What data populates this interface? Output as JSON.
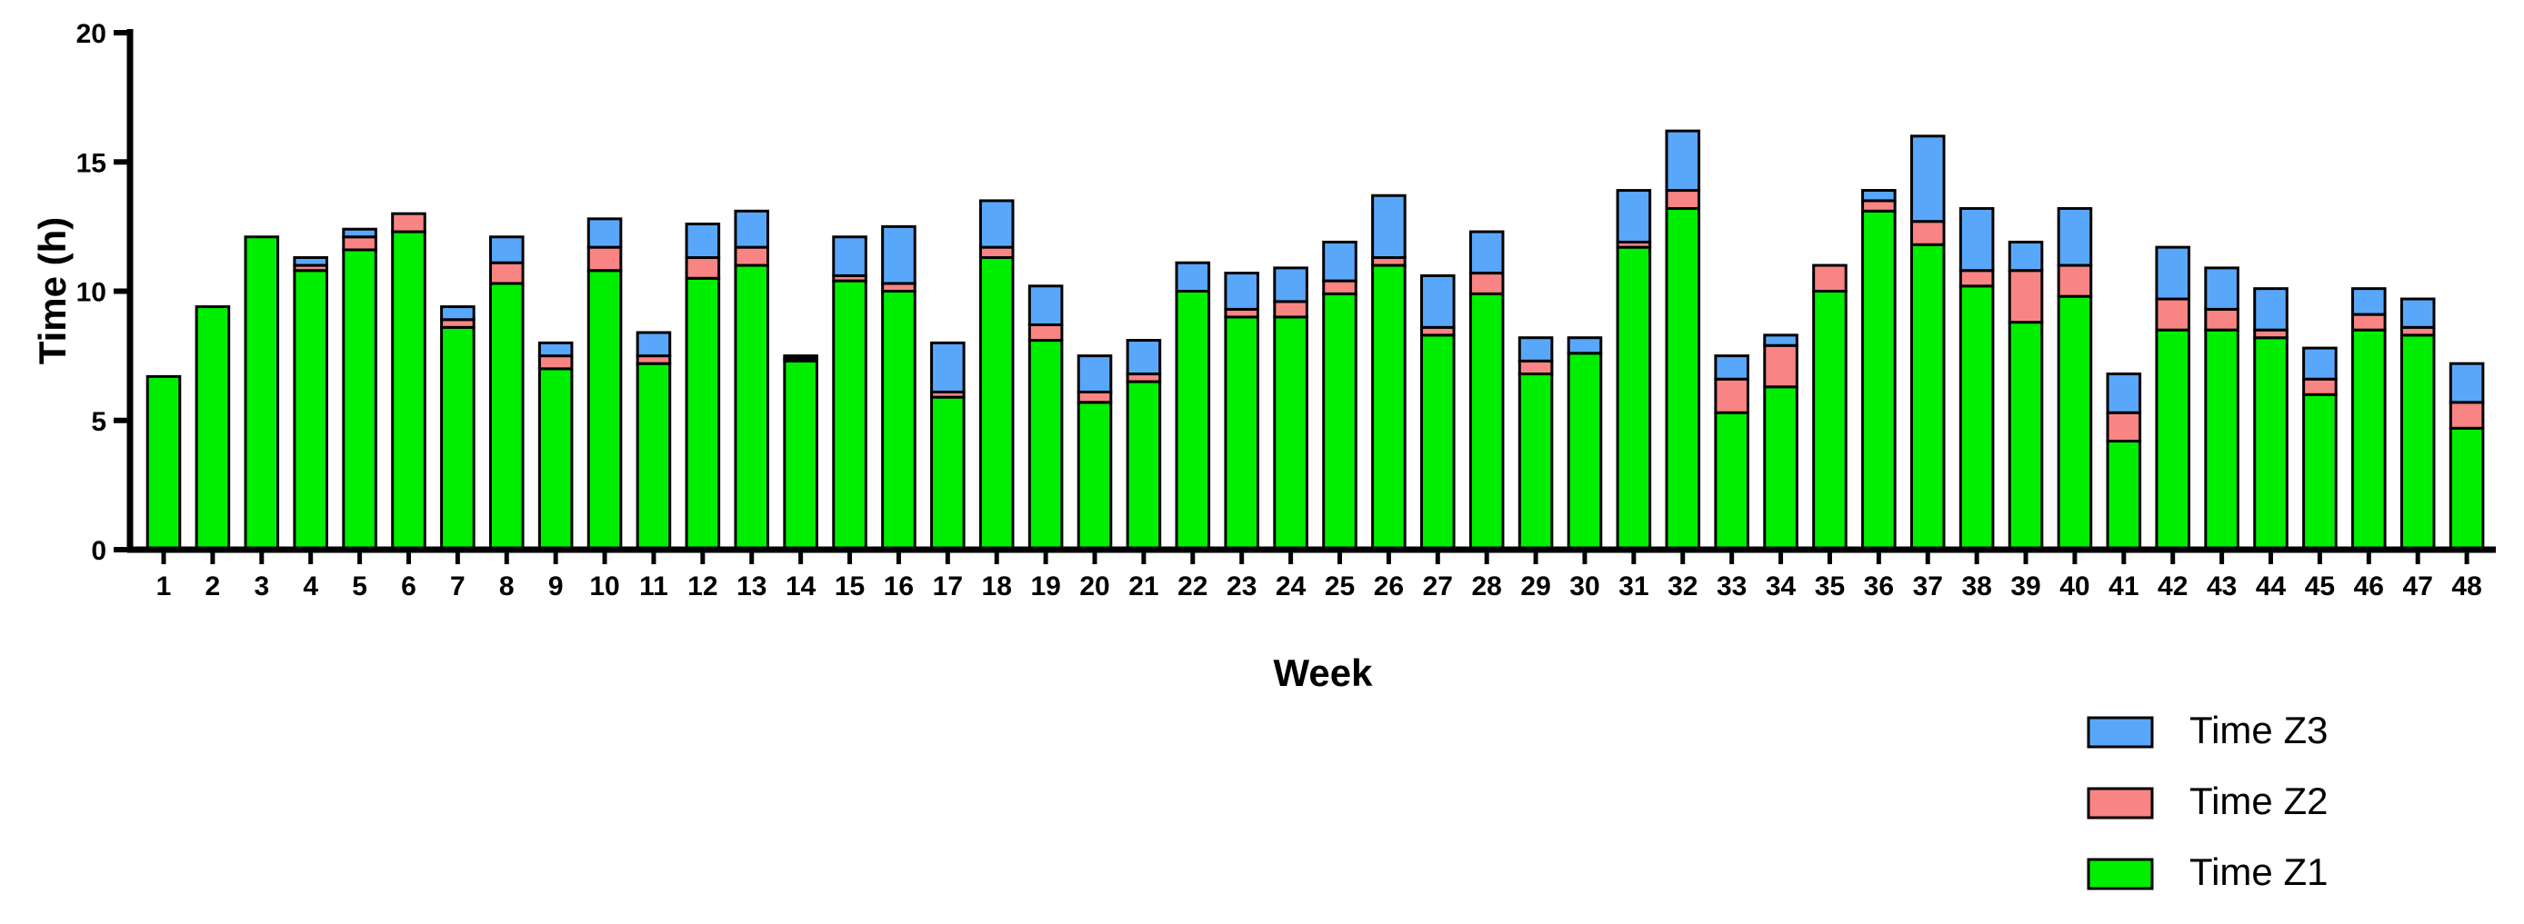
{
  "chart_data": {
    "type": "bar",
    "stacked": true,
    "xlabel": "Week",
    "ylabel": "Time (h)",
    "ylim": [
      0,
      20
    ],
    "yticks": [
      0,
      5,
      10,
      15,
      20
    ],
    "grid": false,
    "legend_position": "bottom-right",
    "categories": [
      "1",
      "2",
      "3",
      "4",
      "5",
      "6",
      "7",
      "8",
      "9",
      "10",
      "11",
      "12",
      "13",
      "14",
      "15",
      "16",
      "17",
      "18",
      "19",
      "20",
      "21",
      "22",
      "23",
      "24",
      "25",
      "26",
      "27",
      "28",
      "29",
      "30",
      "31",
      "32",
      "33",
      "34",
      "35",
      "36",
      "37",
      "38",
      "39",
      "40",
      "41",
      "42",
      "43",
      "44",
      "45",
      "46",
      "47",
      "48"
    ],
    "series": [
      {
        "name": "Time Z1",
        "color": "#00ee00",
        "values": [
          6.7,
          9.4,
          12.1,
          10.8,
          11.6,
          12.3,
          8.6,
          10.3,
          7.0,
          10.8,
          7.2,
          10.5,
          11.0,
          7.3,
          10.4,
          10.0,
          5.9,
          11.3,
          8.1,
          5.7,
          6.5,
          10.0,
          9.0,
          9.0,
          9.9,
          11.0,
          8.3,
          9.9,
          6.8,
          7.6,
          11.7,
          13.2,
          5.3,
          6.3,
          10.0,
          13.1,
          11.8,
          10.2,
          8.8,
          9.8,
          4.2,
          8.5,
          8.5,
          8.2,
          6.0,
          8.5,
          8.3,
          4.7
        ]
      },
      {
        "name": "Time Z2",
        "color": "#f88484",
        "values": [
          0,
          0,
          0,
          0.2,
          0.5,
          0.7,
          0.3,
          0.8,
          0.5,
          0.9,
          0.3,
          0.8,
          0.7,
          0.1,
          0.2,
          0.3,
          0.2,
          0.4,
          0.6,
          0.4,
          0.3,
          0,
          0.3,
          0.6,
          0.5,
          0.3,
          0.3,
          0.8,
          0.5,
          0,
          0.2,
          0.7,
          1.3,
          1.6,
          1.0,
          0.4,
          0.9,
          0.6,
          2.0,
          1.2,
          1.1,
          1.2,
          0.8,
          0.3,
          0.6,
          0.6,
          0.3,
          1.0
        ]
      },
      {
        "name": "Time Z3",
        "color": "#59a7fb",
        "values": [
          0,
          0,
          0,
          0.3,
          0.3,
          0,
          0.5,
          1.0,
          0.5,
          1.1,
          0.9,
          1.3,
          1.4,
          0.1,
          1.5,
          2.2,
          1.9,
          1.8,
          1.5,
          1.4,
          1.3,
          1.1,
          1.4,
          1.3,
          1.5,
          2.4,
          2.0,
          1.6,
          0.9,
          0.6,
          2.0,
          2.3,
          0.9,
          0.4,
          0,
          0.4,
          3.3,
          2.4,
          1.1,
          2.2,
          1.5,
          2.0,
          1.6,
          1.6,
          1.2,
          1.0,
          1.1,
          1.5
        ]
      }
    ],
    "legend_order": [
      "Time Z3",
      "Time Z2",
      "Time Z1"
    ]
  }
}
